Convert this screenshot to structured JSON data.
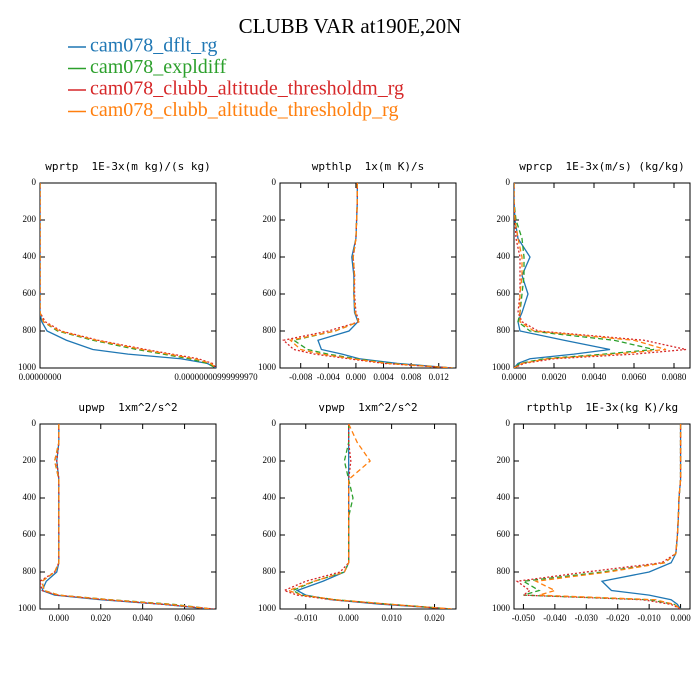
{
  "title": "CLUBB VAR at190E,20N",
  "chart_data": [
    {
      "type": "line",
      "title": "wprtp  1E-3x(m kg)/(s kg)",
      "y": [
        0,
        100,
        200,
        300,
        400,
        500,
        600,
        700,
        750,
        800,
        850,
        900,
        925,
        950,
        975,
        1000
      ],
      "ylim": [
        0,
        1000
      ],
      "y_reversed": true,
      "yticks": [
        0,
        200,
        400,
        600,
        800,
        1000
      ],
      "xlim": [
        0,
        1e-08
      ],
      "xticks": [
        {
          "value": 0,
          "label": "0.00000000"
        },
        {
          "value": 9.9999997e-09,
          "label": "0.00000000999999970"
        }
      ],
      "series": [
        {
          "name": "cam078_dflt_rg",
          "color": "#1f77b4",
          "linestyle": "solid",
          "values": [
            0,
            0,
            0,
            0,
            0,
            0,
            0,
            0,
            1e-10,
            4e-10,
            1.5e-09,
            3e-09,
            5e-09,
            8e-09,
            9.5e-09,
            1e-08
          ]
        },
        {
          "name": "cam078_expldiff",
          "color": "#2ca02c",
          "linestyle": "dashed",
          "values": [
            0,
            0,
            0,
            0,
            0,
            0,
            0,
            0,
            2e-10,
            1e-09,
            3e-09,
            5.5e-09,
            7e-09,
            8.5e-09,
            9.5e-09,
            1e-08
          ]
        },
        {
          "name": "cam078_clubb_altitude_thresholdm_rg",
          "color": "#d62728",
          "linestyle": "dotted",
          "values": [
            0,
            0,
            0,
            0,
            0,
            0,
            0,
            0,
            3e-10,
            1.2e-09,
            3.3e-09,
            6e-09,
            7.5e-09,
            9e-09,
            9.8e-09,
            1e-08
          ]
        },
        {
          "name": "cam078_clubb_altitude_thresholdp_rg",
          "color": "#ff7f0e",
          "linestyle": "dashed",
          "values": [
            0,
            0,
            0,
            0,
            0,
            0,
            0,
            0,
            2e-10,
            1.1e-09,
            3.2e-09,
            5.8e-09,
            7.3e-09,
            8.8e-09,
            9.7e-09,
            1e-08
          ]
        }
      ]
    },
    {
      "type": "line",
      "title": "wpthlp  1x(m K)/s",
      "y": [
        0,
        100,
        200,
        300,
        400,
        500,
        600,
        700,
        750,
        800,
        850,
        900,
        925,
        950,
        975,
        1000
      ],
      "ylim": [
        0,
        1000
      ],
      "y_reversed": true,
      "yticks": [
        0,
        200,
        400,
        600,
        800,
        1000
      ],
      "xlim": [
        -0.011,
        0.0145
      ],
      "xticks": [
        -0.008,
        -0.004,
        {
          "value": 0,
          "label": "0.000"
        },
        0.004,
        0.008,
        0.012
      ],
      "series": [
        {
          "name": "cam078_dflt_rg",
          "color": "#1f77b4",
          "linestyle": "solid",
          "values": [
            0.0002,
            0.0002,
            0.0001,
            0,
            -0.0006,
            -0.0003,
            -0.0003,
            -0.0002,
            0.0003,
            -0.001,
            -0.0055,
            -0.005,
            -0.002,
            0.0005,
            0.006,
            0.014
          ]
        },
        {
          "name": "cam078_expldiff",
          "color": "#2ca02c",
          "linestyle": "dashed",
          "values": [
            0.0002,
            0.0002,
            0.0001,
            0,
            -0.0004,
            -0.0002,
            -0.0003,
            -0.0001,
            0.0004,
            -0.003,
            -0.009,
            -0.007,
            -0.004,
            0,
            0.005,
            0.014
          ]
        },
        {
          "name": "cam078_clubb_altitude_thresholdm_rg",
          "color": "#d62728",
          "linestyle": "dotted",
          "values": [
            0.0002,
            0.0002,
            0.0001,
            0,
            -0.0004,
            -0.0002,
            -0.0002,
            0,
            0.0005,
            -0.004,
            -0.0105,
            -0.009,
            -0.006,
            -0.001,
            0.004,
            0.014
          ]
        },
        {
          "name": "cam078_clubb_altitude_thresholdp_rg",
          "color": "#ff7f0e",
          "linestyle": "dashed",
          "values": [
            0.0002,
            0.0002,
            0.0001,
            0,
            -0.0004,
            -0.0002,
            -0.0003,
            -0.0001,
            0.0004,
            -0.003,
            -0.0095,
            -0.008,
            -0.005,
            -0.0005,
            0.0045,
            0.014
          ]
        }
      ]
    },
    {
      "type": "line",
      "title": "wprcp  1E-3x(m/s) (kg/kg)",
      "y": [
        0,
        100,
        200,
        300,
        400,
        500,
        600,
        700,
        750,
        800,
        850,
        900,
        925,
        950,
        975,
        1000
      ],
      "ylim": [
        0,
        1000
      ],
      "y_reversed": true,
      "yticks": [
        0,
        200,
        400,
        600,
        800,
        1000
      ],
      "xlim": [
        0,
        0.0088
      ],
      "xticks": [
        {
          "value": 0,
          "label": "0.0000"
        },
        {
          "value": 0.002,
          "label": "0.0020"
        },
        {
          "value": 0.004,
          "label": "0.0040"
        },
        {
          "value": 0.006,
          "label": "0.0060"
        },
        {
          "value": 0.008,
          "label": "0.0080"
        }
      ],
      "series": [
        {
          "name": "cam078_dflt_rg",
          "color": "#1f77b4",
          "linestyle": "solid",
          "values": [
            0,
            0,
            5e-05,
            0.0002,
            0.0008,
            0.0004,
            0.0007,
            0.0004,
            0.0002,
            0.0003,
            0.0025,
            0.0048,
            0.003,
            0.0008,
            0.0002,
            0
          ]
        },
        {
          "name": "cam078_expldiff",
          "color": "#2ca02c",
          "linestyle": "dashed",
          "values": [
            0,
            0,
            0.0001,
            0.0004,
            0.0005,
            0.0005,
            0.0004,
            0.0003,
            0.0002,
            0.0008,
            0.005,
            0.007,
            0.0045,
            0.0015,
            0.0003,
            0
          ]
        },
        {
          "name": "cam078_clubb_altitude_thresholdm_rg",
          "color": "#d62728",
          "linestyle": "dotted",
          "values": [
            0,
            0,
            5e-05,
            0.0001,
            0.0003,
            0.0003,
            0.0003,
            0.0002,
            0.0004,
            0.0012,
            0.0065,
            0.0086,
            0.006,
            0.002,
            0.0005,
            0
          ]
        },
        {
          "name": "cam078_clubb_altitude_thresholdp_rg",
          "color": "#ff7f0e",
          "linestyle": "dashed",
          "values": [
            0,
            0,
            5e-05,
            0.0002,
            0.0004,
            0.0004,
            0.0003,
            0.0003,
            0.0003,
            0.001,
            0.006,
            0.0076,
            0.005,
            0.0017,
            0.0004,
            0
          ]
        }
      ]
    },
    {
      "type": "line",
      "title": "upwp  1xm^2/s^2",
      "y": [
        0,
        100,
        200,
        300,
        400,
        500,
        600,
        700,
        750,
        800,
        850,
        900,
        925,
        950,
        975,
        1000
      ],
      "ylim": [
        0,
        1000
      ],
      "y_reversed": true,
      "yticks": [
        0,
        200,
        400,
        600,
        800,
        1000
      ],
      "xlim": [
        -0.009,
        0.075
      ],
      "xticks": [
        {
          "value": 0,
          "label": "0.000"
        },
        {
          "value": 0.02,
          "label": "0.020"
        },
        {
          "value": 0.04,
          "label": "0.040"
        },
        {
          "value": 0.06,
          "label": "0.060"
        }
      ],
      "series": [
        {
          "name": "cam078_dflt_rg",
          "color": "#1f77b4",
          "linestyle": "solid",
          "values": [
            0,
            0,
            -0.001,
            0,
            0,
            0,
            0,
            0,
            0,
            -0.001,
            -0.006,
            -0.008,
            -0.002,
            0.02,
            0.05,
            0.072
          ]
        },
        {
          "name": "cam078_expldiff",
          "color": "#2ca02c",
          "linestyle": "dashed",
          "values": [
            0,
            0,
            -0.002,
            0,
            0,
            0,
            0,
            0,
            0,
            -0.002,
            -0.008,
            -0.007,
            0,
            0.025,
            0.055,
            0.073
          ]
        },
        {
          "name": "cam078_clubb_altitude_thresholdm_rg",
          "color": "#d62728",
          "linestyle": "dotted",
          "values": [
            0,
            0,
            -0.001,
            0,
            0,
            0,
            0,
            0,
            0,
            -0.002,
            -0.009,
            -0.008,
            -0.001,
            0.022,
            0.05,
            0.074
          ]
        },
        {
          "name": "cam078_clubb_altitude_thresholdp_rg",
          "color": "#ff7f0e",
          "linestyle": "dashed",
          "values": [
            0,
            0,
            -0.002,
            0,
            0,
            0,
            0,
            0,
            0,
            -0.002,
            -0.008,
            -0.007,
            0,
            0.024,
            0.053,
            0.073
          ]
        }
      ]
    },
    {
      "type": "line",
      "title": "vpwp  1xm^2/s^2",
      "y": [
        0,
        100,
        200,
        300,
        400,
        500,
        600,
        700,
        750,
        800,
        850,
        900,
        925,
        950,
        975,
        1000
      ],
      "ylim": [
        0,
        1000
      ],
      "y_reversed": true,
      "yticks": [
        0,
        200,
        400,
        600,
        800,
        1000
      ],
      "xlim": [
        -0.016,
        0.025
      ],
      "xticks": [
        {
          "value": -0.01,
          "label": "-0.010"
        },
        {
          "value": 0,
          "label": "0.000"
        },
        {
          "value": 0.01,
          "label": "0.010"
        },
        {
          "value": 0.02,
          "label": "0.020"
        }
      ],
      "series": [
        {
          "name": "cam078_dflt_rg",
          "color": "#1f77b4",
          "linestyle": "solid",
          "values": [
            0,
            0,
            0,
            0,
            0,
            0,
            0,
            0,
            0,
            -0.001,
            -0.006,
            -0.012,
            -0.01,
            -0.004,
            0.008,
            0.024
          ]
        },
        {
          "name": "cam078_expldiff",
          "color": "#2ca02c",
          "linestyle": "dashed",
          "values": [
            0,
            0,
            -0.001,
            0,
            0.001,
            0,
            0,
            0,
            0,
            -0.001,
            -0.008,
            -0.013,
            -0.011,
            -0.003,
            0.01,
            0.024
          ]
        },
        {
          "name": "cam078_clubb_altitude_thresholdm_rg",
          "color": "#d62728",
          "linestyle": "dotted",
          "values": [
            0,
            0,
            0.0005,
            0,
            0,
            0,
            0,
            0,
            0,
            -0.002,
            -0.01,
            -0.015,
            -0.012,
            -0.004,
            0.009,
            0.024
          ]
        },
        {
          "name": "cam078_clubb_altitude_thresholdp_rg",
          "color": "#ff7f0e",
          "linestyle": "dashed",
          "values": [
            0,
            0.002,
            0.005,
            0,
            0,
            0,
            0,
            0,
            0,
            -0.001,
            -0.008,
            -0.014,
            -0.011,
            -0.003,
            0.01,
            0.024
          ]
        }
      ]
    },
    {
      "type": "line",
      "title": "rtpthlp  1E-3x(kg K)/kg",
      "y": [
        0,
        100,
        200,
        300,
        400,
        500,
        600,
        700,
        750,
        800,
        850,
        900,
        925,
        950,
        975,
        1000
      ],
      "ylim": [
        0,
        1000
      ],
      "y_reversed": true,
      "yticks": [
        0,
        200,
        400,
        600,
        800,
        1000
      ],
      "xlim": [
        -0.053,
        0.003
      ],
      "xticks": [
        {
          "value": -0.05,
          "label": "-0.050"
        },
        {
          "value": -0.04,
          "label": "-0.040"
        },
        {
          "value": -0.03,
          "label": "-0.030"
        },
        {
          "value": -0.02,
          "label": "-0.020"
        },
        {
          "value": -0.01,
          "label": "-0.010"
        },
        {
          "value": 0,
          "label": "0.000"
        }
      ],
      "series": [
        {
          "name": "cam078_dflt_rg",
          "color": "#1f77b4",
          "linestyle": "solid",
          "values": [
            0,
            0,
            0,
            0,
            -0.0005,
            -0.0007,
            -0.001,
            -0.0015,
            -0.003,
            -0.01,
            -0.025,
            -0.022,
            -0.01,
            -0.003,
            -0.001,
            0
          ]
        },
        {
          "name": "cam078_expldiff",
          "color": "#2ca02c",
          "linestyle": "dashed",
          "values": [
            0,
            0,
            0,
            0,
            -0.0005,
            -0.0007,
            -0.001,
            -0.0015,
            -0.005,
            -0.025,
            -0.05,
            -0.045,
            -0.05,
            -0.01,
            -0.002,
            0
          ]
        },
        {
          "name": "cam078_clubb_altitude_thresholdm_rg",
          "color": "#d62728",
          "linestyle": "dotted",
          "values": [
            0,
            0,
            0,
            0,
            -0.0005,
            -0.0007,
            -0.001,
            -0.0015,
            -0.006,
            -0.03,
            -0.052,
            -0.048,
            -0.05,
            -0.012,
            -0.003,
            0
          ]
        },
        {
          "name": "cam078_clubb_altitude_thresholdp_rg",
          "color": "#ff7f0e",
          "linestyle": "dashed",
          "values": [
            0,
            0,
            0,
            0,
            -0.0005,
            -0.0007,
            -0.001,
            -0.0015,
            -0.005,
            -0.023,
            -0.046,
            -0.04,
            -0.045,
            -0.008,
            -0.002,
            0
          ]
        }
      ]
    }
  ]
}
